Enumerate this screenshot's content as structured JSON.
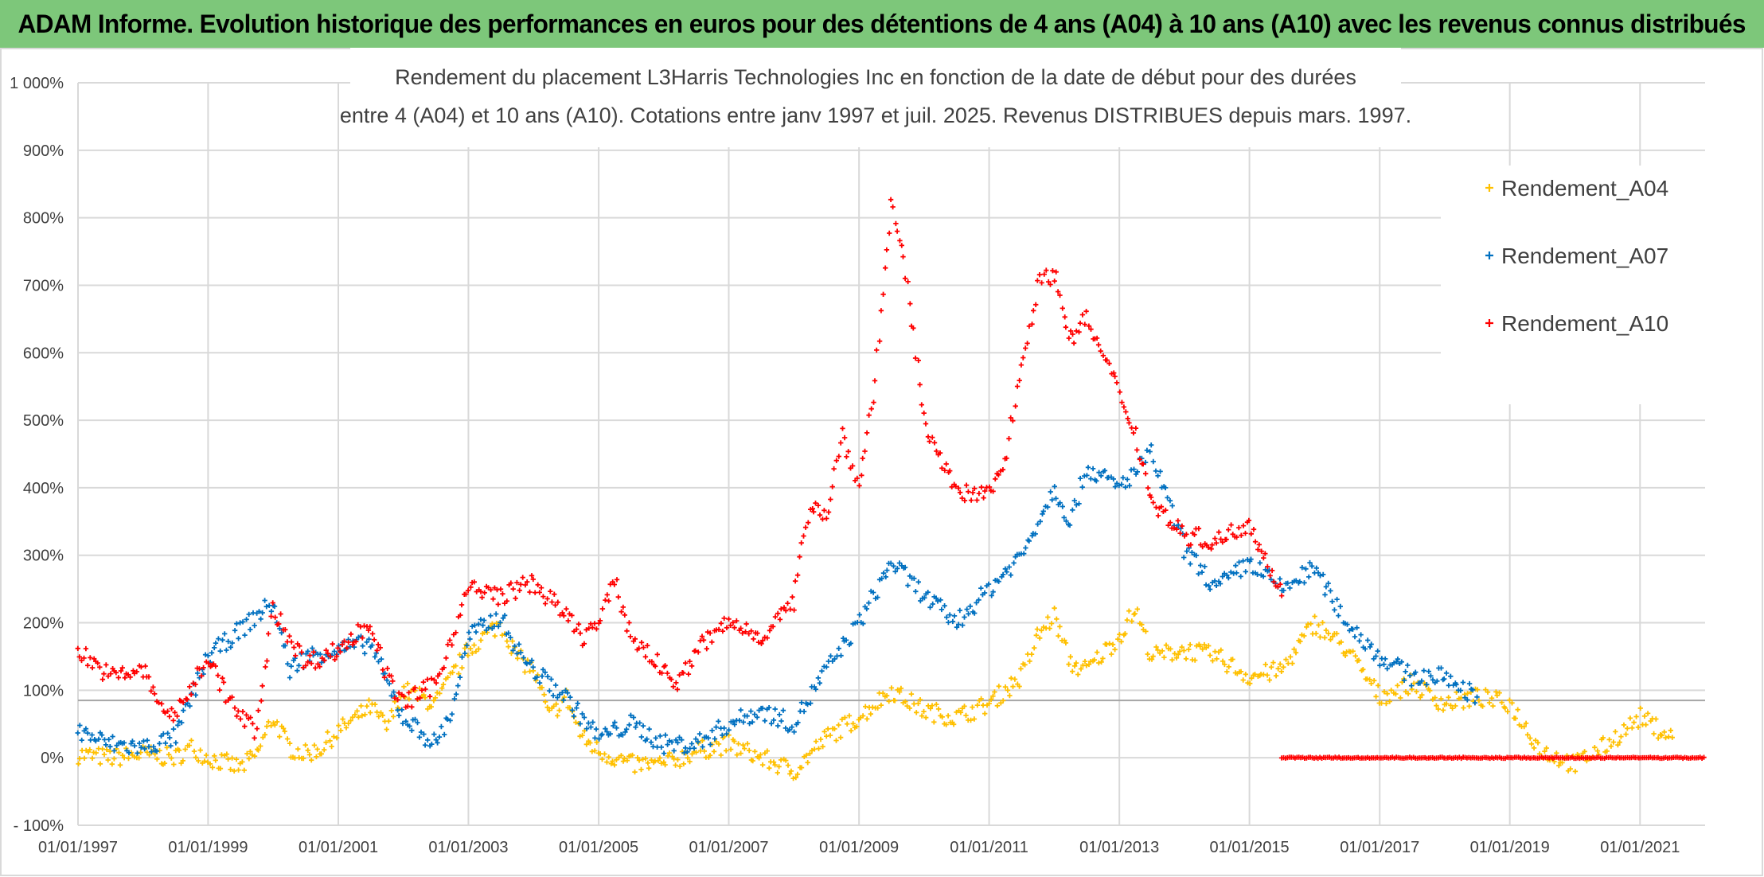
{
  "banner": {
    "title": "ADAM Informe. Evolution historique des performances en euros pour des détentions de 4 ans (A04) à 10 ans (A10) avec les revenus connus distribués"
  },
  "colors": {
    "banner_bg": "#7dc77a",
    "A04": "#ffc000",
    "A07": "#0070c0",
    "A10": "#ff0000",
    "grid": "#d9d9d9",
    "text": "#404040"
  },
  "chart_data": {
    "type": "scatter",
    "title_line1": "Rendement du placement L3Harris Technologies Inc en fonction de la date de début pour des durées",
    "title_line2": "entre 4 (A04) et 10 ans (A10). Cotations entre janv 1997 et juil. 2025. Revenus DISTRIBUES depuis mars. 1997.",
    "x_type": "date",
    "xlim": [
      "1997-01-01",
      "2022-01-01"
    ],
    "x_ticks": [
      "01/01/1997",
      "01/01/1999",
      "01/01/2001",
      "01/01/2003",
      "01/01/2005",
      "01/01/2007",
      "01/01/2009",
      "01/01/2011",
      "01/01/2013",
      "01/01/2015",
      "01/01/2017",
      "01/01/2019",
      "01/01/2021"
    ],
    "ylim": [
      -100,
      1000
    ],
    "y_ticks": [
      "1 000%",
      "900%",
      "800%",
      "700%",
      "600%",
      "500%",
      "400%",
      "300%",
      "200%",
      "100%",
      "0%",
      "- 100%"
    ],
    "y_unit": "%",
    "grid": true,
    "legend_position": "top-right",
    "reference_line_y": 85,
    "series": [
      {
        "name": "Rendement_A04",
        "color": "#ffc000",
        "x": [
          "1997-01-01",
          "1997-07-01",
          "1998-01-01",
          "1998-07-01",
          "1998-10-01",
          "1999-01-01",
          "1999-07-01",
          "1999-10-01",
          "2000-01-01",
          "2000-04-01",
          "2000-07-01",
          "2000-10-01",
          "2001-01-01",
          "2001-07-01",
          "2001-10-01",
          "2002-01-01",
          "2002-07-01",
          "2002-10-01",
          "2003-01-01",
          "2003-07-01",
          "2003-10-01",
          "2004-01-01",
          "2004-04-01",
          "2004-07-01",
          "2004-10-01",
          "2005-01-01",
          "2005-07-01",
          "2006-01-01",
          "2006-07-01",
          "2007-01-01",
          "2007-07-01",
          "2008-01-01",
          "2008-07-01",
          "2009-01-01",
          "2009-07-01",
          "2010-01-01",
          "2010-07-01",
          "2011-01-01",
          "2011-07-01",
          "2011-10-01",
          "2012-01-01",
          "2012-04-01",
          "2012-07-01",
          "2013-01-01",
          "2013-04-01",
          "2013-07-01",
          "2014-01-01",
          "2014-07-01",
          "2015-01-01",
          "2015-07-01",
          "2016-01-01",
          "2016-07-01",
          "2017-01-01",
          "2017-07-01",
          "2018-01-01",
          "2018-07-01",
          "2019-01-01",
          "2019-07-01",
          "2020-01-01",
          "2020-07-01",
          "2021-01-01",
          "2021-07-01"
        ],
        "y": [
          5,
          0,
          5,
          0,
          15,
          0,
          -15,
          5,
          60,
          15,
          5,
          15,
          40,
          75,
          45,
          100,
          80,
          120,
          160,
          200,
          150,
          130,
          60,
          90,
          30,
          10,
          -10,
          -10,
          10,
          20,
          0,
          -20,
          30,
          60,
          100,
          70,
          60,
          80,
          120,
          180,
          210,
          140,
          130,
          180,
          220,
          150,
          160,
          150,
          120,
          130,
          200,
          160,
          90,
          110,
          80,
          90,
          80,
          10,
          -10,
          20,
          60,
          30
        ]
      },
      {
        "name": "Rendement_A07",
        "color": "#0070c0",
        "x": [
          "1997-01-01",
          "1997-07-01",
          "1998-01-01",
          "1998-07-01",
          "1999-01-01",
          "1999-07-01",
          "2000-01-01",
          "2000-04-01",
          "2000-07-01",
          "2001-01-01",
          "2001-07-01",
          "2001-10-01",
          "2002-01-01",
          "2002-07-01",
          "2002-10-01",
          "2003-01-01",
          "2003-07-01",
          "2003-10-01",
          "2004-01-01",
          "2004-04-01",
          "2004-07-01",
          "2004-10-01",
          "2005-01-01",
          "2005-07-01",
          "2006-01-01",
          "2006-07-01",
          "2007-01-01",
          "2007-07-01",
          "2008-01-01",
          "2008-07-01",
          "2009-01-01",
          "2009-07-01",
          "2010-01-01",
          "2010-07-01",
          "2011-01-01",
          "2011-07-01",
          "2012-01-01",
          "2012-04-01",
          "2012-07-01",
          "2013-01-01",
          "2013-07-01",
          "2014-01-01",
          "2014-07-01",
          "2015-01-01",
          "2015-07-01",
          "2016-01-01",
          "2016-07-01",
          "2017-01-01",
          "2017-07-01",
          "2018-01-01",
          "2018-07-01"
        ],
        "y": [
          40,
          20,
          15,
          30,
          150,
          190,
          230,
          130,
          150,
          160,
          170,
          110,
          60,
          20,
          70,
          180,
          210,
          160,
          130,
          110,
          90,
          60,
          30,
          50,
          20,
          20,
          50,
          70,
          50,
          130,
          200,
          290,
          240,
          200,
          250,
          300,
          400,
          350,
          430,
          400,
          450,
          310,
          250,
          290,
          250,
          280,
          200,
          150,
          120,
          120,
          90
        ]
      },
      {
        "name": "Rendement_A10",
        "color": "#ff0000",
        "x": [
          "1997-01-01",
          "1997-07-01",
          "1998-01-01",
          "1998-04-01",
          "1998-07-01",
          "1999-01-01",
          "1999-04-01",
          "1999-07-01",
          "1999-10-01",
          "2000-01-01",
          "2000-07-01",
          "2001-01-01",
          "2001-07-01",
          "2001-10-01",
          "2002-01-01",
          "2002-07-01",
          "2002-10-01",
          "2003-01-01",
          "2003-07-01",
          "2004-01-01",
          "2004-07-01",
          "2004-10-01",
          "2005-01-01",
          "2005-04-01",
          "2005-07-01",
          "2006-01-01",
          "2006-04-01",
          "2006-07-01",
          "2007-01-01",
          "2007-07-01",
          "2008-01-01",
          "2008-04-01",
          "2008-07-01",
          "2008-10-01",
          "2009-01-01",
          "2009-04-01",
          "2009-07-01",
          "2009-10-01",
          "2010-01-01",
          "2010-04-01",
          "2010-07-01",
          "2011-01-01",
          "2011-04-01",
          "2011-07-01",
          "2011-10-01",
          "2012-01-01",
          "2012-04-01",
          "2012-07-01",
          "2013-01-01",
          "2013-04-01",
          "2013-07-01",
          "2014-01-01",
          "2014-07-01",
          "2015-01-01",
          "2015-07-01"
        ],
        "y": [
          160,
          120,
          130,
          80,
          60,
          150,
          100,
          60,
          40,
          220,
          140,
          160,
          200,
          120,
          80,
          110,
          180,
          250,
          240,
          260,
          210,
          180,
          200,
          260,
          180,
          130,
          110,
          160,
          200,
          180,
          230,
          380,
          360,
          480,
          400,
          560,
          820,
          700,
          500,
          450,
          390,
          390,
          440,
          580,
          700,
          720,
          620,
          650,
          540,
          480,
          380,
          330,
          320,
          350,
          240
        ]
      }
    ],
    "flat_zero_segment": {
      "series": "Rendement_A10",
      "from": "2015-07-01",
      "to": "2022-01-01",
      "y": 0
    }
  }
}
